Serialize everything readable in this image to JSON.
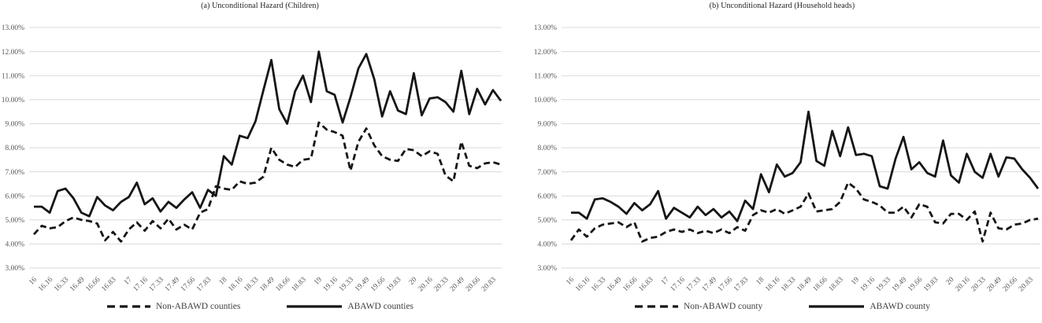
{
  "figure": {
    "background": "#ffffff"
  },
  "colors": {
    "line": "#161616",
    "grid": "#d9d9d9",
    "tick_text": "#595959",
    "title_text": "#1f1f1f",
    "legend_text": "#404040"
  },
  "chart_data": [
    {
      "type": "line",
      "title": "(a) Unconditional Hazard (Children)",
      "xlabel": "",
      "ylabel": "",
      "ylim": [
        3,
        13
      ],
      "y_tick_step": 1,
      "grid": "horizontal",
      "legend_position": "bottom",
      "y_ticks": [
        "13.00%",
        "12.00%",
        "11.00%",
        "10.00%",
        "9.00%",
        "8.00%",
        "7.00%",
        "6.00%",
        "5.00%",
        "4.00%",
        "3.00%"
      ],
      "x_tick_labels": [
        "16",
        "16.16",
        "16.33",
        "16.49",
        "16.66",
        "16.83",
        "17",
        "17.16",
        "17.33",
        "17.49",
        "17.66",
        "17.83",
        "18",
        "18.16",
        "18.33",
        "18.49",
        "18.66",
        "18.83",
        "19",
        "19.16",
        "19.33",
        "19.49",
        "19.66",
        "19.83",
        "20",
        "20.16",
        "20.33",
        "20.49",
        "20.66",
        "20.83"
      ],
      "points_per_tick": 2,
      "unit": "%",
      "series": [
        {
          "name": "Non-ABAWD counties",
          "style": "dashed",
          "values": [
            4.4,
            4.75,
            4.65,
            4.7,
            4.95,
            5.1,
            5.0,
            4.95,
            4.85,
            4.15,
            4.5,
            4.1,
            4.6,
            4.9,
            4.55,
            4.95,
            4.65,
            5.05,
            4.6,
            4.8,
            4.6,
            5.3,
            5.45,
            6.4,
            6.3,
            6.25,
            6.6,
            6.5,
            6.55,
            6.8,
            8.0,
            7.5,
            7.3,
            7.2,
            7.5,
            7.55,
            9.05,
            8.75,
            8.65,
            8.5,
            7.05,
            8.25,
            8.8,
            8.1,
            7.65,
            7.5,
            7.45,
            7.95,
            7.9,
            7.65,
            7.85,
            7.75,
            6.85,
            6.6,
            8.25,
            7.25,
            7.15,
            7.35,
            7.4,
            7.3
          ]
        },
        {
          "name": "ABAWD counties",
          "style": "solid",
          "values": [
            5.55,
            5.55,
            5.3,
            6.2,
            6.3,
            5.9,
            5.3,
            5.15,
            5.95,
            5.6,
            5.4,
            5.75,
            5.95,
            6.55,
            5.65,
            5.9,
            5.35,
            5.75,
            5.5,
            5.85,
            6.15,
            5.5,
            6.25,
            6.0,
            7.65,
            7.3,
            8.5,
            8.4,
            9.1,
            10.4,
            11.65,
            9.6,
            9.0,
            10.35,
            11.0,
            9.9,
            12.0,
            10.35,
            10.2,
            9.05,
            10.1,
            11.3,
            11.9,
            10.85,
            9.3,
            10.35,
            9.55,
            9.4,
            11.1,
            9.35,
            10.05,
            10.1,
            9.9,
            9.5,
            11.2,
            9.4,
            10.45,
            9.8,
            10.4,
            9.95
          ]
        }
      ]
    },
    {
      "type": "line",
      "title": "(b) Unconditional Hazard (Household heads)",
      "xlabel": "",
      "ylabel": "",
      "ylim": [
        3,
        13
      ],
      "y_tick_step": 1,
      "grid": "horizontal",
      "legend_position": "bottom",
      "y_ticks": [
        "13.00%",
        "12.00%",
        "11.00%",
        "10.00%",
        "9.00%",
        "8.00%",
        "7.00%",
        "6.00%",
        "5.00%",
        "4.00%",
        "3.00%"
      ],
      "x_tick_labels": [
        "16",
        "16.16",
        "16.33",
        "16.49",
        "16.66",
        "16.83",
        "17",
        "17.16",
        "17.33",
        "17.49",
        "17.66",
        "17.83",
        "18",
        "18.16",
        "18.33",
        "18.49",
        "18.66",
        "18.83",
        "19",
        "19.16",
        "19.33",
        "19.49",
        "19.66",
        "19.83",
        "20",
        "20.16",
        "20.33",
        "20.49",
        "20.66",
        "20.83"
      ],
      "points_per_tick": 2,
      "unit": "%",
      "series": [
        {
          "name": "Non-ABAWD county",
          "style": "dashed",
          "values": [
            4.15,
            4.6,
            4.3,
            4.65,
            4.8,
            4.85,
            4.9,
            4.7,
            4.9,
            4.1,
            4.25,
            4.3,
            4.5,
            4.6,
            4.5,
            4.6,
            4.45,
            4.55,
            4.45,
            4.6,
            4.45,
            4.7,
            4.55,
            5.2,
            5.4,
            5.3,
            5.45,
            5.25,
            5.4,
            5.55,
            6.1,
            5.35,
            5.4,
            5.45,
            5.75,
            6.55,
            6.3,
            5.85,
            5.75,
            5.6,
            5.3,
            5.3,
            5.55,
            5.1,
            5.65,
            5.55,
            4.9,
            4.85,
            5.25,
            5.25,
            5.0,
            5.35,
            4.1,
            5.3,
            4.65,
            4.6,
            4.8,
            4.85,
            5.0,
            5.05
          ]
        },
        {
          "name": "ABAWD county",
          "style": "solid",
          "values": [
            5.3,
            5.3,
            5.05,
            5.85,
            5.9,
            5.75,
            5.55,
            5.25,
            5.7,
            5.4,
            5.65,
            6.2,
            5.05,
            5.5,
            5.3,
            5.1,
            5.55,
            5.2,
            5.45,
            5.1,
            5.35,
            4.95,
            5.8,
            5.45,
            6.9,
            6.15,
            7.3,
            6.8,
            6.95,
            7.4,
            9.5,
            7.45,
            7.25,
            8.7,
            7.65,
            8.85,
            7.7,
            7.75,
            7.65,
            6.4,
            6.3,
            7.55,
            8.45,
            7.1,
            7.4,
            6.95,
            6.8,
            8.3,
            6.85,
            6.55,
            7.75,
            7.0,
            6.75,
            7.75,
            6.8,
            7.6,
            7.55,
            7.1,
            6.75,
            6.3
          ]
        }
      ]
    }
  ]
}
